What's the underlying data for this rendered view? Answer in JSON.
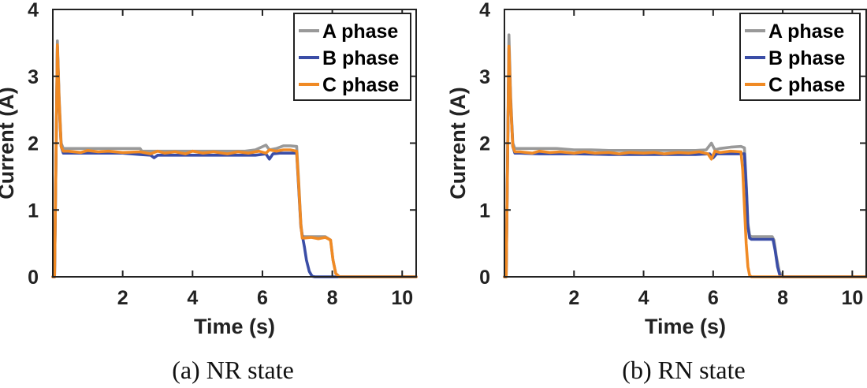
{
  "chart_data": [
    {
      "type": "line",
      "title": "",
      "caption": "(a) NR state",
      "xlabel": "Time (s)",
      "ylabel": "Current (A)",
      "xlim": [
        0,
        10.4
      ],
      "ylim": [
        0,
        4
      ],
      "xticks": [
        2,
        4,
        6,
        8,
        10
      ],
      "yticks": [
        0,
        1,
        2,
        3,
        4
      ],
      "legend_position": "top-right",
      "series": [
        {
          "name": "A phase",
          "color": "#999999",
          "x": [
            0,
            0.05,
            0.13,
            0.18,
            0.24,
            0.3,
            0.45,
            1.0,
            1.5,
            2.0,
            2.5,
            2.55,
            3.0,
            3.5,
            4.0,
            4.5,
            5.0,
            5.5,
            5.8,
            6.1,
            6.2,
            6.4,
            6.6,
            6.8,
            6.98,
            7.04,
            7.1,
            7.14,
            7.2,
            7.4,
            7.6,
            7.8,
            7.95,
            8.02,
            8.1,
            8.2,
            10.4
          ],
          "y": [
            0,
            0,
            3.53,
            2.7,
            2.0,
            1.92,
            1.92,
            1.92,
            1.92,
            1.92,
            1.92,
            1.88,
            1.88,
            1.88,
            1.88,
            1.88,
            1.88,
            1.88,
            1.9,
            1.97,
            1.9,
            1.92,
            1.96,
            1.96,
            1.95,
            1.4,
            0.8,
            0.6,
            0.6,
            0.6,
            0.6,
            0.6,
            0.55,
            0.25,
            0.05,
            0,
            0
          ]
        },
        {
          "name": "B phase",
          "color": "#3A4DA6",
          "x": [
            0,
            0.05,
            0.13,
            0.18,
            0.24,
            0.3,
            0.45,
            1.0,
            2.0,
            2.5,
            2.8,
            2.9,
            3.0,
            3.5,
            4.0,
            4.5,
            5.0,
            5.5,
            5.8,
            6.1,
            6.2,
            6.3,
            6.5,
            6.98,
            7.04,
            7.1,
            7.14,
            7.2,
            7.26,
            7.34,
            7.42,
            7.5,
            10.4
          ],
          "y": [
            0,
            0,
            3.45,
            2.6,
            1.95,
            1.85,
            1.85,
            1.85,
            1.85,
            1.83,
            1.82,
            1.78,
            1.82,
            1.82,
            1.82,
            1.82,
            1.82,
            1.82,
            1.82,
            1.84,
            1.76,
            1.84,
            1.85,
            1.85,
            1.3,
            0.75,
            0.62,
            0.45,
            0.25,
            0.08,
            0.01,
            0,
            0
          ]
        },
        {
          "name": "C phase",
          "color": "#F08A24",
          "x": [
            0,
            0.05,
            0.13,
            0.18,
            0.24,
            0.3,
            0.45,
            0.8,
            1.0,
            1.3,
            1.6,
            2.0,
            2.5,
            2.8,
            3.0,
            3.2,
            3.5,
            3.8,
            4.0,
            4.3,
            4.6,
            5.0,
            5.3,
            5.6,
            5.9,
            6.1,
            6.2,
            6.4,
            6.6,
            6.8,
            6.98,
            7.04,
            7.1,
            7.14,
            7.2,
            7.4,
            7.6,
            7.8,
            7.95,
            8.02,
            8.1,
            8.2,
            10.4
          ],
          "y": [
            0,
            0,
            3.47,
            2.65,
            1.95,
            1.88,
            1.88,
            1.86,
            1.89,
            1.87,
            1.88,
            1.86,
            1.87,
            1.84,
            1.88,
            1.85,
            1.87,
            1.84,
            1.88,
            1.85,
            1.87,
            1.84,
            1.87,
            1.85,
            1.88,
            1.85,
            1.9,
            1.88,
            1.9,
            1.9,
            1.88,
            1.35,
            0.78,
            0.58,
            0.58,
            0.59,
            0.57,
            0.59,
            0.55,
            0.25,
            0.05,
            0,
            0
          ]
        }
      ]
    },
    {
      "type": "line",
      "title": "",
      "caption": "(b) RN state",
      "xlabel": "Time (s)",
      "ylabel": "Current (A)",
      "xlim": [
        0,
        10.4
      ],
      "ylim": [
        0,
        4
      ],
      "xticks": [
        2,
        4,
        6,
        8,
        10
      ],
      "yticks": [
        0,
        1,
        2,
        3,
        4
      ],
      "legend_position": "top-right",
      "series": [
        {
          "name": "A phase",
          "color": "#999999",
          "x": [
            0,
            0.05,
            0.13,
            0.18,
            0.24,
            0.3,
            0.45,
            1.0,
            1.5,
            2.0,
            2.5,
            3.0,
            3.5,
            4.0,
            4.5,
            5.0,
            5.5,
            5.8,
            5.95,
            6.05,
            6.2,
            6.5,
            6.8,
            6.9,
            6.96,
            7.0,
            7.05,
            7.1,
            7.3,
            7.5,
            7.7,
            7.75,
            7.82,
            7.9,
            8.0,
            10.4
          ],
          "y": [
            0,
            0,
            3.62,
            2.7,
            2.0,
            1.92,
            1.92,
            1.92,
            1.92,
            1.9,
            1.9,
            1.89,
            1.89,
            1.89,
            1.89,
            1.89,
            1.89,
            1.9,
            2.0,
            1.9,
            1.92,
            1.94,
            1.95,
            1.93,
            1.3,
            0.8,
            0.62,
            0.6,
            0.6,
            0.6,
            0.6,
            0.55,
            0.3,
            0.08,
            0,
            0
          ]
        },
        {
          "name": "B phase",
          "color": "#3A4DA6",
          "x": [
            0,
            0.05,
            0.13,
            0.18,
            0.24,
            0.3,
            0.45,
            1.0,
            2.0,
            3.0,
            4.0,
            5.0,
            5.5,
            5.9,
            6.0,
            6.1,
            6.3,
            6.6,
            6.9,
            6.96,
            7.0,
            7.05,
            7.1,
            7.3,
            7.5,
            7.72,
            7.78,
            7.85,
            7.92,
            8.0,
            10.4
          ],
          "y": [
            0,
            0,
            3.42,
            2.6,
            1.95,
            1.85,
            1.85,
            1.84,
            1.84,
            1.83,
            1.83,
            1.83,
            1.83,
            1.84,
            1.78,
            1.84,
            1.84,
            1.84,
            1.84,
            1.25,
            0.75,
            0.58,
            0.56,
            0.56,
            0.56,
            0.56,
            0.4,
            0.15,
            0.02,
            0,
            0
          ]
        },
        {
          "name": "C phase",
          "color": "#F08A24",
          "x": [
            0,
            0.05,
            0.13,
            0.18,
            0.24,
            0.3,
            0.45,
            0.8,
            1.0,
            1.3,
            1.6,
            2.0,
            2.3,
            2.6,
            3.0,
            3.3,
            3.6,
            4.0,
            4.3,
            4.6,
            5.0,
            5.3,
            5.6,
            5.85,
            5.95,
            6.05,
            6.2,
            6.5,
            6.8,
            6.85,
            6.9,
            6.95,
            7.0,
            7.05,
            7.1,
            10.4
          ],
          "y": [
            0,
            0,
            3.45,
            2.6,
            1.95,
            1.87,
            1.87,
            1.85,
            1.88,
            1.86,
            1.87,
            1.85,
            1.87,
            1.85,
            1.86,
            1.84,
            1.86,
            1.85,
            1.86,
            1.84,
            1.86,
            1.85,
            1.87,
            1.84,
            1.76,
            1.88,
            1.86,
            1.88,
            1.87,
            1.6,
            1.05,
            0.5,
            0.15,
            0.02,
            0,
            0
          ]
        }
      ]
    }
  ]
}
